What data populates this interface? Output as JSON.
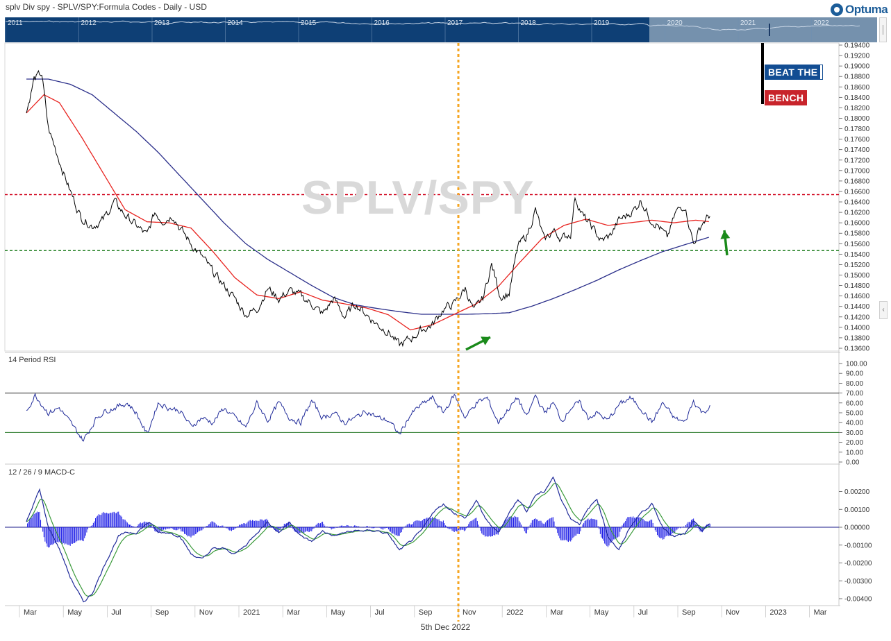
{
  "header": {
    "title": "splv Div spy -  SPLV/SPY:Formula Codes - Daily - USD",
    "logo_text": "Optuma"
  },
  "navigator": {
    "years": [
      "2011",
      "2012",
      "2013",
      "2014",
      "2015",
      "2016",
      "2017",
      "2018",
      "2019",
      "2020",
      "2021",
      "2022"
    ]
  },
  "watermark": "SPLV/SPY",
  "badge": {
    "line1": "BEAT THE",
    "line2": "BENCH"
  },
  "footer": {
    "date": "5th Dec 2022"
  },
  "colors": {
    "price": "#000000",
    "ma_fast": "#e8231f",
    "ma_slow": "#2b2f8a",
    "resistance": "#d0021b",
    "support": "#1a7a1a",
    "marker": "#f5a623",
    "arrow": "#1a8a1a",
    "rsi_line": "#1f2a99",
    "macd_line": "#1f2a99",
    "signal_line": "#3a9a3a",
    "histogram": "#1a1ae6",
    "navigator_bg": "#0e3f75",
    "navigator_selected": "#7591ad"
  },
  "chart_data": [
    {
      "type": "line",
      "panel": "price",
      "y_ticks": [
        "0.19400",
        "0.19200",
        "0.19000",
        "0.18800",
        "0.18600",
        "0.18400",
        "0.18200",
        "0.18000",
        "0.17800",
        "0.17600",
        "0.17400",
        "0.17200",
        "0.17000",
        "0.16800",
        "0.16600",
        "0.16400",
        "0.16200",
        "0.16000",
        "0.15800",
        "0.15600",
        "0.15400",
        "0.15200",
        "0.15000",
        "0.14800",
        "0.14600",
        "0.14400",
        "0.14200",
        "0.14000",
        "0.13800",
        "0.13600"
      ],
      "ylim": [
        0.1355,
        0.1945
      ],
      "x_ticks": [
        "Mar",
        "May",
        "Jul",
        "Sep",
        "Nov",
        "2021",
        "Mar",
        "May",
        "Jul",
        "Sep",
        "Nov",
        "2022",
        "Mar",
        "May",
        "Jul",
        "Sep",
        "Nov",
        "2023",
        "Mar"
      ],
      "resistance": 0.1654,
      "support": 0.1547,
      "marker_date": "2021-11",
      "price_anchors": [
        [
          0,
          0.181
        ],
        [
          0.35,
          0.1875
        ],
        [
          0.7,
          0.1885
        ],
        [
          1.0,
          0.178
        ],
        [
          1.5,
          0.172
        ],
        [
          2.0,
          0.166
        ],
        [
          2.5,
          0.161
        ],
        [
          3.0,
          0.1595
        ],
        [
          3.5,
          0.1605
        ],
        [
          4.0,
          0.164
        ],
        [
          4.5,
          0.1615
        ],
        [
          5.0,
          0.1595
        ],
        [
          5.5,
          0.1575
        ],
        [
          5.85,
          0.162
        ],
        [
          6.2,
          0.1605
        ],
        [
          6.7,
          0.1615
        ],
        [
          7.0,
          0.159
        ],
        [
          7.5,
          0.156
        ],
        [
          8.0,
          0.1535
        ],
        [
          8.5,
          0.1505
        ],
        [
          9.0,
          0.148
        ],
        [
          9.5,
          0.1455
        ],
        [
          10.0,
          0.1425
        ],
        [
          10.5,
          0.1435
        ],
        [
          11.0,
          0.1475
        ],
        [
          11.5,
          0.1455
        ],
        [
          12.0,
          0.147
        ],
        [
          12.5,
          0.146
        ],
        [
          13.0,
          0.1445
        ],
        [
          13.5,
          0.1425
        ],
        [
          14.0,
          0.1455
        ],
        [
          14.5,
          0.142
        ],
        [
          15.0,
          0.1445
        ],
        [
          15.5,
          0.1425
        ],
        [
          16.0,
          0.1405
        ],
        [
          16.5,
          0.1392
        ],
        [
          17.0,
          0.1365
        ],
        [
          17.5,
          0.1378
        ],
        [
          18.0,
          0.1395
        ],
        [
          18.5,
          0.1405
        ],
        [
          19.0,
          0.1435
        ],
        [
          19.5,
          0.1445
        ],
        [
          20.0,
          0.1475
        ],
        [
          20.4,
          0.143
        ],
        [
          20.8,
          0.1455
        ],
        [
          21.2,
          0.152
        ],
        [
          21.6,
          0.146
        ],
        [
          22.0,
          0.1465
        ],
        [
          22.4,
          0.1555
        ],
        [
          22.8,
          0.1575
        ],
        [
          23.2,
          0.1625
        ],
        [
          23.6,
          0.1565
        ],
        [
          24.0,
          0.1585
        ],
        [
          24.4,
          0.157
        ],
        [
          24.8,
          0.158
        ],
        [
          25.0,
          0.165
        ],
        [
          25.4,
          0.161
        ],
        [
          25.8,
          0.159
        ],
        [
          26.2,
          0.1565
        ],
        [
          26.6,
          0.1575
        ],
        [
          27.0,
          0.1605
        ],
        [
          27.4,
          0.1615
        ],
        [
          27.8,
          0.163
        ],
        [
          28.0,
          0.1645
        ],
        [
          28.4,
          0.161
        ],
        [
          28.8,
          0.1595
        ],
        [
          29.2,
          0.157
        ],
        [
          29.6,
          0.162
        ],
        [
          30.0,
          0.1635
        ],
        [
          30.4,
          0.156
        ],
        [
          30.8,
          0.16
        ],
        [
          31.15,
          0.1615
        ]
      ],
      "ma_fast_anchors": [
        [
          0,
          0.181
        ],
        [
          0.8,
          0.1845
        ],
        [
          1.5,
          0.183
        ],
        [
          2.5,
          0.1765
        ],
        [
          3.5,
          0.1695
        ],
        [
          4.5,
          0.1625
        ],
        [
          5.5,
          0.1602
        ],
        [
          6.5,
          0.16
        ],
        [
          7.5,
          0.159
        ],
        [
          8.5,
          0.1545
        ],
        [
          9.5,
          0.1495
        ],
        [
          10.5,
          0.1462
        ],
        [
          11.5,
          0.1455
        ],
        [
          12.5,
          0.1468
        ],
        [
          13.5,
          0.1452
        ],
        [
          14.5,
          0.1445
        ],
        [
          15.5,
          0.1437
        ],
        [
          16.5,
          0.1424
        ],
        [
          17.5,
          0.1395
        ],
        [
          18.5,
          0.1405
        ],
        [
          19.5,
          0.1425
        ],
        [
          20.5,
          0.1445
        ],
        [
          21.5,
          0.1478
        ],
        [
          22.5,
          0.1525
        ],
        [
          23.5,
          0.157
        ],
        [
          24.5,
          0.1595
        ],
        [
          25.5,
          0.1607
        ],
        [
          26.5,
          0.1595
        ],
        [
          27.5,
          0.16
        ],
        [
          28.5,
          0.1605
        ],
        [
          29.5,
          0.16
        ],
        [
          30.5,
          0.1605
        ],
        [
          31.15,
          0.1602
        ]
      ],
      "ma_slow_anchors": [
        [
          0,
          0.1875
        ],
        [
          1.0,
          0.1875
        ],
        [
          2.0,
          0.1865
        ],
        [
          3.0,
          0.1845
        ],
        [
          4.0,
          0.181
        ],
        [
          5.0,
          0.1775
        ],
        [
          6.0,
          0.1735
        ],
        [
          7.0,
          0.169
        ],
        [
          8.0,
          0.1645
        ],
        [
          9.0,
          0.16
        ],
        [
          10.0,
          0.156
        ],
        [
          11.0,
          0.153
        ],
        [
          12.0,
          0.1505
        ],
        [
          13.0,
          0.148
        ],
        [
          14.0,
          0.1457
        ],
        [
          15.0,
          0.1443
        ],
        [
          16.0,
          0.1436
        ],
        [
          17.0,
          0.143
        ],
        [
          18.0,
          0.1425
        ],
        [
          19.0,
          0.1425
        ],
        [
          20.0,
          0.1425
        ],
        [
          21.0,
          0.1426
        ],
        [
          22.0,
          0.1428
        ],
        [
          23.0,
          0.144
        ],
        [
          24.0,
          0.1455
        ],
        [
          25.0,
          0.1472
        ],
        [
          26.0,
          0.149
        ],
        [
          27.0,
          0.151
        ],
        [
          28.0,
          0.1528
        ],
        [
          29.0,
          0.1545
        ],
        [
          30.0,
          0.1558
        ],
        [
          31.15,
          0.1573
        ]
      ]
    },
    {
      "type": "line",
      "panel": "rsi",
      "title": "14 Period RSI",
      "y_ticks": [
        "100.00",
        "90.00",
        "80.00",
        "70.00",
        "60.00",
        "50.00",
        "40.00",
        "30.00",
        "20.00",
        "10.00",
        "0.00"
      ],
      "ylim": [
        0,
        100
      ],
      "overbought": 70,
      "oversold": 30,
      "rsi_anchors": [
        [
          0,
          52
        ],
        [
          0.4,
          68
        ],
        [
          1.0,
          50
        ],
        [
          1.5,
          55
        ],
        [
          2.0,
          40
        ],
        [
          2.6,
          22
        ],
        [
          3.2,
          45
        ],
        [
          3.6,
          52
        ],
        [
          4.0,
          55
        ],
        [
          4.6,
          60
        ],
        [
          5.0,
          50
        ],
        [
          5.5,
          28
        ],
        [
          6.0,
          60
        ],
        [
          6.5,
          55
        ],
        [
          7.0,
          52
        ],
        [
          7.5,
          36
        ],
        [
          8.0,
          45
        ],
        [
          8.5,
          40
        ],
        [
          9.0,
          55
        ],
        [
          9.5,
          45
        ],
        [
          10.0,
          35
        ],
        [
          10.5,
          60
        ],
        [
          11.0,
          42
        ],
        [
          11.5,
          60
        ],
        [
          12.0,
          45
        ],
        [
          12.5,
          40
        ],
        [
          13.0,
          62
        ],
        [
          13.5,
          45
        ],
        [
          14.0,
          50
        ],
        [
          14.5,
          40
        ],
        [
          15.0,
          45
        ],
        [
          15.5,
          52
        ],
        [
          16.0,
          45
        ],
        [
          16.5,
          42
        ],
        [
          17.0,
          28
        ],
        [
          17.5,
          48
        ],
        [
          18.0,
          58
        ],
        [
          18.5,
          65
        ],
        [
          19.0,
          50
        ],
        [
          19.5,
          68
        ],
        [
          20.0,
          45
        ],
        [
          20.5,
          60
        ],
        [
          21.0,
          65
        ],
        [
          21.5,
          40
        ],
        [
          22.0,
          55
        ],
        [
          22.4,
          65
        ],
        [
          22.8,
          45
        ],
        [
          23.2,
          68
        ],
        [
          23.6,
          50
        ],
        [
          24.0,
          60
        ],
        [
          24.4,
          42
        ],
        [
          24.8,
          55
        ],
        [
          25.2,
          60
        ],
        [
          25.6,
          45
        ],
        [
          26.0,
          50
        ],
        [
          26.5,
          42
        ],
        [
          27.0,
          58
        ],
        [
          27.5,
          65
        ],
        [
          28.0,
          55
        ],
        [
          28.5,
          40
        ],
        [
          29.0,
          60
        ],
        [
          29.5,
          45
        ],
        [
          30.0,
          40
        ],
        [
          30.4,
          62
        ],
        [
          30.8,
          50
        ],
        [
          31.15,
          56
        ]
      ]
    },
    {
      "type": "line",
      "panel": "macd",
      "title": "12 / 26 / 9 MACD-C",
      "y_ticks": [
        "0.00200",
        "0.00100",
        "0.00000",
        "-0.00100",
        "-0.00200",
        "-0.00300",
        "-0.00400"
      ],
      "ylim": [
        -0.0045,
        0.003
      ],
      "macd_anchors": [
        [
          0,
          0.0003
        ],
        [
          0.6,
          0.0021
        ],
        [
          1.0,
          0.0
        ],
        [
          1.5,
          -0.0012
        ],
        [
          2.0,
          -0.0028
        ],
        [
          2.6,
          -0.0042
        ],
        [
          3.0,
          -0.0037
        ],
        [
          3.6,
          -0.002
        ],
        [
          4.2,
          -0.0005
        ],
        [
          4.6,
          -0.0003
        ],
        [
          5.0,
          -0.0003
        ],
        [
          5.6,
          0.0003
        ],
        [
          6.0,
          -0.0003
        ],
        [
          6.5,
          -0.0003
        ],
        [
          7.0,
          -0.0005
        ],
        [
          7.5,
          -0.0015
        ],
        [
          8.0,
          -0.0018
        ],
        [
          8.5,
          -0.0012
        ],
        [
          9.0,
          -0.0012
        ],
        [
          9.5,
          -0.0015
        ],
        [
          10.0,
          -0.001
        ],
        [
          10.5,
          -0.0003
        ],
        [
          11.0,
          0.0003
        ],
        [
          11.5,
          -0.0003
        ],
        [
          12.0,
          0.0003
        ],
        [
          12.5,
          -0.0005
        ],
        [
          13.0,
          -0.0008
        ],
        [
          13.5,
          -0.0002
        ],
        [
          14.0,
          -0.0005
        ],
        [
          14.5,
          -0.0003
        ],
        [
          15.0,
          -0.0002
        ],
        [
          15.5,
          -0.0002
        ],
        [
          16.0,
          -0.0002
        ],
        [
          16.5,
          -0.0004
        ],
        [
          17.0,
          -0.0013
        ],
        [
          17.5,
          -0.0008
        ],
        [
          18.0,
          -0.0002
        ],
        [
          18.5,
          0.0008
        ],
        [
          19.0,
          0.0013
        ],
        [
          19.5,
          0.0008
        ],
        [
          20.0,
          0.0005
        ],
        [
          20.5,
          0.0015
        ],
        [
          21.0,
          0.0003
        ],
        [
          21.5,
          -0.0003
        ],
        [
          22.0,
          0.0008
        ],
        [
          22.4,
          0.0016
        ],
        [
          22.8,
          0.0009
        ],
        [
          23.2,
          0.0018
        ],
        [
          23.6,
          0.002
        ],
        [
          24.0,
          0.0028
        ],
        [
          24.4,
          0.0015
        ],
        [
          24.8,
          0.0005
        ],
        [
          25.2,
          0.0002
        ],
        [
          25.6,
          0.001
        ],
        [
          26.0,
          0.0016
        ],
        [
          26.5,
          -0.0005
        ],
        [
          27.0,
          -0.0013
        ],
        [
          27.5,
          0.0
        ],
        [
          28.0,
          0.0008
        ],
        [
          28.5,
          0.0013
        ],
        [
          29.0,
          0.0
        ],
        [
          29.5,
          -0.0005
        ],
        [
          30.0,
          -0.0004
        ],
        [
          30.4,
          0.0003
        ],
        [
          30.8,
          -0.0002
        ],
        [
          31.15,
          0.0002
        ]
      ]
    }
  ]
}
